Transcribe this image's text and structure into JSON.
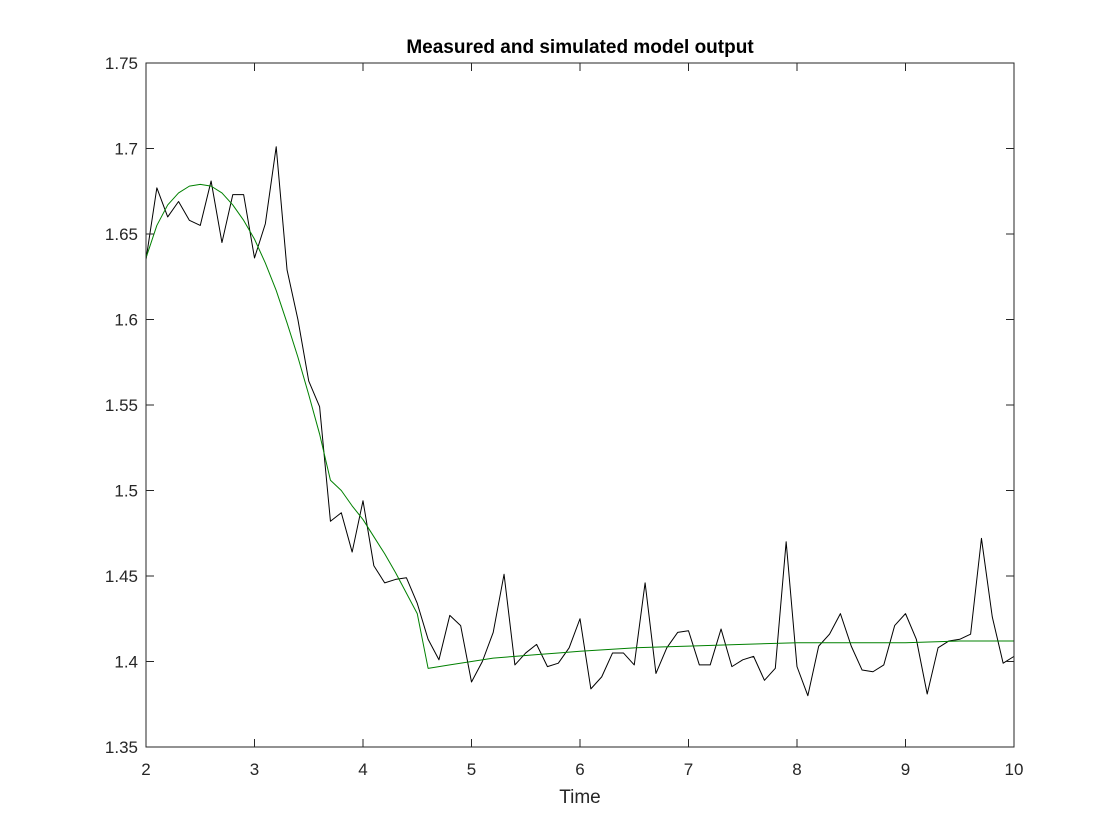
{
  "chart_data": {
    "type": "line",
    "title": "Measured and simulated model output",
    "xlabel": "Time",
    "ylabel": "",
    "xlim": [
      2,
      10
    ],
    "ylim": [
      1.35,
      1.75
    ],
    "xticks": [
      "2",
      "3",
      "4",
      "5",
      "6",
      "7",
      "8",
      "9",
      "10"
    ],
    "yticks": [
      "1.35",
      "1.4",
      "1.45",
      "1.5",
      "1.55",
      "1.6",
      "1.65",
      "1.7",
      "1.75"
    ],
    "grid": false,
    "box": true,
    "series": [
      {
        "color": "#000000",
        "x": [
          2.0,
          2.1,
          2.2,
          2.3,
          2.4,
          2.5,
          2.6,
          2.7,
          2.8,
          2.9,
          3.0,
          3.1,
          3.2,
          3.3,
          3.4,
          3.5,
          3.6,
          3.7,
          3.8,
          3.9,
          4.0,
          4.1,
          4.2,
          4.3,
          4.4,
          4.5,
          4.6,
          4.7,
          4.8,
          4.9,
          5.0,
          5.1,
          5.2,
          5.3,
          5.4,
          5.5,
          5.6,
          5.7,
          5.8,
          5.9,
          6.0,
          6.1,
          6.2,
          6.3,
          6.4,
          6.5,
          6.6,
          6.7,
          6.8,
          6.9,
          7.0,
          7.1,
          7.2,
          7.3,
          7.4,
          7.5,
          7.6,
          7.7,
          7.8,
          7.9,
          8.0,
          8.1,
          8.2,
          8.3,
          8.4,
          8.5,
          8.6,
          8.7,
          8.8,
          8.9,
          9.0,
          9.1,
          9.2,
          9.3,
          9.4,
          9.5,
          9.6,
          9.7,
          9.8,
          9.9,
          10.0
        ],
        "y": [
          1.635,
          1.677,
          1.66,
          1.669,
          1.658,
          1.655,
          1.681,
          1.645,
          1.673,
          1.673,
          1.636,
          1.656,
          1.701,
          1.629,
          1.6,
          1.564,
          1.549,
          1.482,
          1.487,
          1.464,
          1.494,
          1.456,
          1.446,
          1.448,
          1.449,
          1.434,
          1.413,
          1.401,
          1.427,
          1.421,
          1.388,
          1.4,
          1.417,
          1.451,
          1.398,
          1.405,
          1.41,
          1.397,
          1.399,
          1.408,
          1.425,
          1.384,
          1.391,
          1.405,
          1.405,
          1.398,
          1.446,
          1.393,
          1.408,
          1.417,
          1.418,
          1.398,
          1.398,
          1.419,
          1.397,
          1.401,
          1.403,
          1.389,
          1.396,
          1.47,
          1.397,
          1.38,
          1.409,
          1.416,
          1.428,
          1.409,
          1.395,
          1.394,
          1.398,
          1.421,
          1.428,
          1.413,
          1.381,
          1.408,
          1.412,
          1.413,
          1.416,
          1.472,
          1.426,
          1.399,
          1.403
        ]
      },
      {
        "color": "#008000",
        "x": [
          2.0,
          2.1,
          2.2,
          2.3,
          2.4,
          2.5,
          2.6,
          2.7,
          2.8,
          2.9,
          3.0,
          3.1,
          3.2,
          3.3,
          3.4,
          3.5,
          3.6,
          3.7,
          3.8,
          3.9,
          4.0,
          4.1,
          4.2,
          4.3,
          4.4,
          4.5,
          4.6,
          4.7,
          4.8,
          5.0,
          5.2,
          5.4,
          5.6,
          5.8,
          6.0,
          6.5,
          7.0,
          7.5,
          8.0,
          8.5,
          9.0,
          9.5,
          10.0
        ],
        "y": [
          1.636,
          1.655,
          1.667,
          1.674,
          1.678,
          1.679,
          1.678,
          1.674,
          1.667,
          1.658,
          1.647,
          1.633,
          1.617,
          1.598,
          1.578,
          1.556,
          1.533,
          1.506,
          1.5,
          1.491,
          1.483,
          1.473,
          1.463,
          1.452,
          1.44,
          1.428,
          1.396,
          1.397,
          1.398,
          1.4,
          1.402,
          1.403,
          1.404,
          1.405,
          1.406,
          1.408,
          1.409,
          1.41,
          1.411,
          1.411,
          1.411,
          1.412,
          1.412
        ]
      }
    ]
  }
}
